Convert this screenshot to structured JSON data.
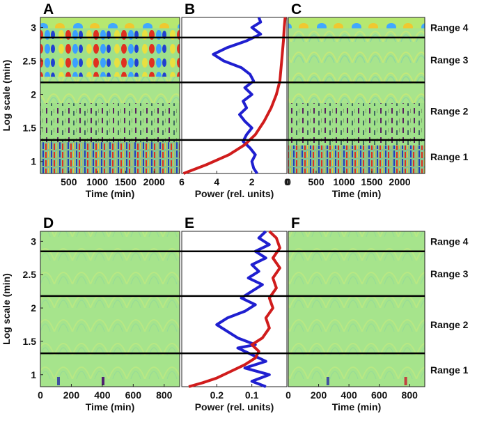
{
  "chart_data": [
    {
      "type": "heatmap",
      "panel_label": "A",
      "xlabel": "Time (min)",
      "ylabel": "Log scale (min)",
      "xticks": [
        "500",
        "1000",
        "1500",
        "2000"
      ],
      "xtick_values": [
        500,
        1000,
        1500,
        2000
      ],
      "xlim": [
        0,
        2450
      ],
      "yticks": [
        "1",
        "1.5",
        "2",
        "2.5",
        "3"
      ],
      "ytick_values": [
        1,
        1.5,
        2,
        2.5,
        3
      ],
      "ylim": [
        0.82,
        3.15
      ],
      "range_boundaries": [
        1.32,
        2.18,
        2.85
      ],
      "colormap": "jet (blue-negative, green-zero, red-positive)",
      "texture": "strong oscillations in ranges 3-4, dense speckle in ranges 1-2"
    },
    {
      "type": "line",
      "panel_label": "B",
      "xlabel": "Power (rel. units)",
      "xticks": [
        "6",
        "4",
        "2",
        "0"
      ],
      "xtick_values": [
        6,
        4,
        2,
        0
      ],
      "xlim": [
        6,
        0
      ],
      "ylim": [
        0.82,
        3.15
      ],
      "range_boundaries": [
        1.32,
        2.18,
        2.85
      ],
      "series": [
        {
          "color": "#1f1fd0",
          "points": [
            [
              1.7,
              0.82
            ],
            [
              1.9,
              0.9
            ],
            [
              2.0,
              1.0
            ],
            [
              1.8,
              1.1
            ],
            [
              2.1,
              1.2
            ],
            [
              2.5,
              1.3
            ],
            [
              2.3,
              1.4
            ],
            [
              2.0,
              1.5
            ],
            [
              2.4,
              1.6
            ],
            [
              2.7,
              1.7
            ],
            [
              2.3,
              1.8
            ],
            [
              2.5,
              1.9
            ],
            [
              2.0,
              2.0
            ],
            [
              2.4,
              2.1
            ],
            [
              1.9,
              2.2
            ],
            [
              2.1,
              2.3
            ],
            [
              2.6,
              2.4
            ],
            [
              3.6,
              2.5
            ],
            [
              4.2,
              2.6
            ],
            [
              3.4,
              2.7
            ],
            [
              2.3,
              2.8
            ],
            [
              1.5,
              2.9
            ],
            [
              2.0,
              3.0
            ],
            [
              1.5,
              3.08
            ],
            [
              1.6,
              3.15
            ]
          ]
        },
        {
          "color": "#d01c1c",
          "points": [
            [
              5.9,
              0.82
            ],
            [
              4.6,
              0.95
            ],
            [
              3.3,
              1.1
            ],
            [
              2.4,
              1.25
            ],
            [
              1.8,
              1.4
            ],
            [
              1.3,
              1.6
            ],
            [
              0.9,
              1.8
            ],
            [
              0.6,
              2.0
            ],
            [
              0.4,
              2.2
            ],
            [
              0.3,
              2.5
            ],
            [
              0.2,
              2.8
            ],
            [
              0.15,
              3.0
            ],
            [
              0.1,
              3.15
            ]
          ]
        }
      ]
    },
    {
      "type": "heatmap",
      "panel_label": "C",
      "xlabel": "Time (min)",
      "xticks": [
        "0",
        "500",
        "1000",
        "1500",
        "2000"
      ],
      "xtick_values": [
        0,
        500,
        1000,
        1500,
        2000
      ],
      "xlim": [
        0,
        2450
      ],
      "ylim": [
        0.82,
        3.15
      ],
      "range_boundaries": [
        1.32,
        2.18,
        2.85
      ],
      "colormap": "jet",
      "texture": "smooth arcs in upper scales, speckle in low scales"
    },
    {
      "type": "heatmap",
      "panel_label": "D",
      "xlabel": "Time (min)",
      "ylabel": "Log scale (min)",
      "xticks": [
        "0",
        "200",
        "400",
        "600",
        "800"
      ],
      "xtick_values": [
        0,
        200,
        400,
        600,
        800
      ],
      "xlim": [
        0,
        900
      ],
      "yticks": [
        "1",
        "1.5",
        "2",
        "2.5",
        "3"
      ],
      "ytick_values": [
        1,
        1.5,
        2,
        2.5,
        3
      ],
      "ylim": [
        0.82,
        3.15
      ],
      "range_boundaries": [
        1.32,
        2.18,
        2.85
      ],
      "colormap": "jet",
      "texture": "faint arcs, mostly uniform green"
    },
    {
      "type": "line",
      "panel_label": "E",
      "xlabel": "Power (rel. units)",
      "xticks": [
        "0.2",
        "0.1"
      ],
      "xtick_values": [
        0.2,
        0.1
      ],
      "xlim": [
        0.3,
        0
      ],
      "ylim": [
        0.82,
        3.15
      ],
      "range_boundaries": [
        1.32,
        2.18,
        2.85
      ],
      "series": [
        {
          "color": "#1f1fd0",
          "points": [
            [
              0.06,
              0.82
            ],
            [
              0.1,
              0.9
            ],
            [
              0.05,
              1.0
            ],
            [
              0.12,
              1.1
            ],
            [
              0.06,
              1.2
            ],
            [
              0.1,
              1.3
            ],
            [
              0.14,
              1.4
            ],
            [
              0.09,
              1.45
            ],
            [
              0.14,
              1.55
            ],
            [
              0.17,
              1.65
            ],
            [
              0.2,
              1.75
            ],
            [
              0.17,
              1.85
            ],
            [
              0.12,
              1.95
            ],
            [
              0.09,
              2.05
            ],
            [
              0.13,
              2.15
            ],
            [
              0.1,
              2.25
            ],
            [
              0.07,
              2.35
            ],
            [
              0.11,
              2.45
            ],
            [
              0.08,
              2.55
            ],
            [
              0.1,
              2.65
            ],
            [
              0.06,
              2.75
            ],
            [
              0.09,
              2.85
            ],
            [
              0.05,
              2.95
            ],
            [
              0.08,
              3.05
            ],
            [
              0.06,
              3.15
            ]
          ]
        },
        {
          "color": "#d01c1c",
          "points": [
            [
              0.28,
              0.82
            ],
            [
              0.24,
              0.88
            ],
            [
              0.2,
              0.95
            ],
            [
              0.16,
              1.05
            ],
            [
              0.12,
              1.15
            ],
            [
              0.09,
              1.25
            ],
            [
              0.08,
              1.35
            ],
            [
              0.1,
              1.45
            ],
            [
              0.07,
              1.55
            ],
            [
              0.05,
              1.7
            ],
            [
              0.06,
              1.85
            ],
            [
              0.04,
              2.0
            ],
            [
              0.05,
              2.15
            ],
            [
              0.03,
              2.3
            ],
            [
              0.04,
              2.45
            ],
            [
              0.02,
              2.6
            ],
            [
              0.04,
              2.75
            ],
            [
              0.02,
              2.9
            ],
            [
              0.03,
              3.05
            ],
            [
              0.05,
              3.15
            ]
          ]
        }
      ]
    },
    {
      "type": "heatmap",
      "panel_label": "F",
      "xlabel": "Time (min)",
      "xticks": [
        "0",
        "200",
        "400",
        "600",
        "800"
      ],
      "xtick_values": [
        0,
        200,
        400,
        600,
        800
      ],
      "xlim": [
        0,
        900
      ],
      "ylim": [
        0.82,
        3.15
      ],
      "range_boundaries": [
        1.32,
        2.18,
        2.85
      ],
      "colormap": "jet",
      "texture": "faint arcs, mostly uniform green"
    }
  ],
  "range_labels": [
    "Range 1",
    "Range 2",
    "Range 3",
    "Range 4"
  ],
  "colors": {
    "field": "#9fe08a",
    "blue": "#1f1fd0",
    "red": "#d01c1c",
    "boundary": "#000000"
  }
}
